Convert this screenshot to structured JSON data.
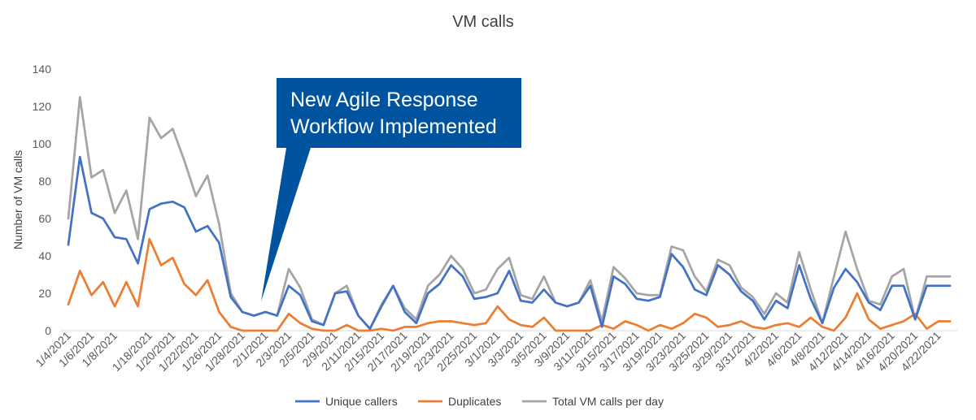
{
  "chart_data": {
    "type": "line",
    "title": "VM calls",
    "xlabel": "",
    "ylabel": "Number of VM calls",
    "ylim": [
      0,
      140
    ],
    "yticks": [
      0,
      20,
      40,
      60,
      80,
      100,
      120,
      140
    ],
    "grid": false,
    "legend_position": "bottom",
    "x": [
      "1/4/2021",
      "1/5/2021",
      "1/6/2021",
      "1/7/2021",
      "1/8/2021",
      "1/11/2021",
      "1/12/2021",
      "1/18/2021",
      "1/19/2021",
      "1/20/2021",
      "1/21/2021",
      "1/22/2021",
      "1/25/2021",
      "1/26/2021",
      "1/27/2021",
      "1/28/2021",
      "1/29/2021",
      "2/1/2021",
      "2/2/2021",
      "2/3/2021",
      "2/4/2021",
      "2/5/2021",
      "2/8/2021",
      "2/9/2021",
      "2/10/2021",
      "2/11/2021",
      "2/12/2021",
      "2/15/2021",
      "2/16/2021",
      "2/17/2021",
      "2/18/2021",
      "2/19/2021",
      "2/22/2021",
      "2/23/2021",
      "2/24/2021",
      "2/25/2021",
      "2/26/2021",
      "3/1/2021",
      "3/2/2021",
      "3/3/2021",
      "3/4/2021",
      "3/5/2021",
      "3/8/2021",
      "3/9/2021",
      "3/10/2021",
      "3/11/2021",
      "3/12/2021",
      "3/15/2021",
      "3/16/2021",
      "3/17/2021",
      "3/18/2021",
      "3/19/2021",
      "3/22/2021",
      "3/23/2021",
      "3/24/2021",
      "3/25/2021",
      "3/26/2021",
      "3/29/2021",
      "3/30/2021",
      "3/31/2021",
      "4/1/2021",
      "4/2/2021",
      "4/5/2021",
      "4/6/2021",
      "4/7/2021",
      "4/8/2021",
      "4/9/2021",
      "4/12/2021",
      "4/13/2021",
      "4/14/2021",
      "4/15/2021",
      "4/16/2021",
      "4/19/2021",
      "4/20/2021",
      "4/21/2021",
      "4/22/2021",
      "4/23/2021"
    ],
    "x_tick_labels": [
      "1/4/2021",
      "1/6/2021",
      "1/8/2021",
      "1/18/2021",
      "1/20/2021",
      "1/22/2021",
      "1/26/2021",
      "1/28/2021",
      "2/1/2021",
      "2/3/2021",
      "2/5/2021",
      "2/9/2021",
      "2/11/2021",
      "2/15/2021",
      "2/17/2021",
      "2/19/2021",
      "2/23/2021",
      "2/25/2021",
      "3/1/2021",
      "3/3/2021",
      "3/5/2021",
      "3/9/2021",
      "3/11/2021",
      "3/15/2021",
      "3/17/2021",
      "3/19/2021",
      "3/23/2021",
      "3/25/2021",
      "3/29/2021",
      "3/31/2021",
      "4/2/2021",
      "4/6/2021",
      "4/8/2021",
      "4/12/2021",
      "4/14/2021",
      "4/16/2021",
      "4/20/2021",
      "4/22/2021"
    ],
    "series": [
      {
        "name": "Unique callers",
        "color": "#4472C4",
        "values": [
          46,
          93,
          63,
          60,
          50,
          49,
          36,
          65,
          68,
          69,
          66,
          53,
          56,
          47,
          18,
          10,
          8,
          10,
          8,
          24,
          19,
          5,
          3,
          20,
          21,
          8,
          1,
          13,
          24,
          10,
          4,
          20,
          25,
          35,
          29,
          17,
          18,
          20,
          32,
          16,
          15,
          22,
          15,
          13,
          15,
          24,
          2,
          29,
          25,
          17,
          16,
          18,
          41,
          34,
          22,
          19,
          35,
          30,
          21,
          16,
          6,
          16,
          12,
          35,
          17,
          4,
          23,
          33,
          26,
          15,
          11,
          24,
          24,
          6,
          24,
          24,
          24
        ]
      },
      {
        "name": "Duplicates",
        "color": "#ED7D31",
        "values": [
          14,
          32,
          19,
          26,
          13,
          26,
          13,
          49,
          35,
          39,
          25,
          19,
          27,
          10,
          2,
          0,
          0,
          0,
          0,
          9,
          4,
          1,
          0,
          0,
          3,
          0,
          0,
          1,
          0,
          2,
          2,
          4,
          5,
          5,
          4,
          3,
          4,
          13,
          6,
          3,
          2,
          7,
          0,
          0,
          0,
          0,
          3,
          1,
          5,
          3,
          0,
          3,
          1,
          4,
          9,
          7,
          2,
          3,
          5,
          2,
          1,
          3,
          4,
          2,
          7,
          2,
          0,
          7,
          20,
          6,
          1,
          3,
          5,
          9,
          1,
          5,
          5
        ]
      },
      {
        "name": "Total VM calls per day",
        "color": "#A5A5A5",
        "values": [
          60,
          125,
          82,
          86,
          63,
          75,
          49,
          114,
          103,
          108,
          91,
          72,
          83,
          57,
          20,
          10,
          8,
          10,
          8,
          33,
          23,
          6,
          3,
          20,
          24,
          8,
          1,
          14,
          24,
          12,
          6,
          24,
          30,
          40,
          33,
          20,
          22,
          33,
          39,
          19,
          17,
          29,
          15,
          13,
          15,
          27,
          5,
          34,
          28,
          20,
          19,
          19,
          45,
          43,
          29,
          21,
          38,
          35,
          23,
          18,
          9,
          20,
          15,
          42,
          22,
          4,
          29,
          53,
          33,
          16,
          14,
          29,
          33,
          6,
          29,
          29,
          29
        ]
      }
    ],
    "annotations": [
      "New Agile Response Workflow Implemented"
    ]
  }
}
